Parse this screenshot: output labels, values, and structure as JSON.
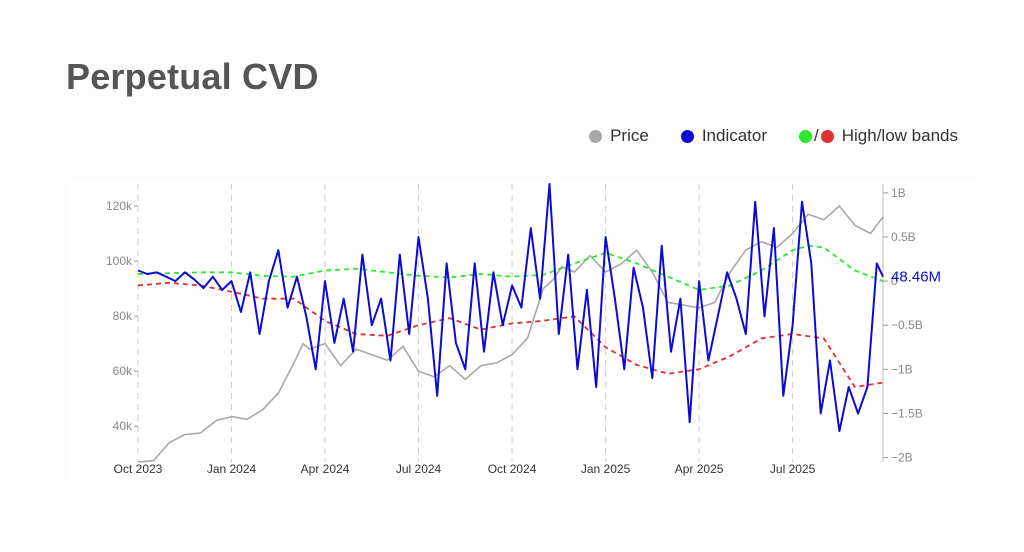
{
  "title": "Perpetual CVD",
  "legend": {
    "price": "Price",
    "indicator": "Indicator",
    "slash": "/",
    "bands": "High/low bands"
  },
  "colors": {
    "price": "#a8a8a8",
    "indicator": "#0b0bd6",
    "high": "#2ee82e",
    "low": "#e03030",
    "grid": "#cccccc"
  },
  "chart_data": {
    "type": "line",
    "last_value_label": "48.46M",
    "left_axis": {
      "ticks": [
        "40k",
        "60k",
        "80k",
        "100k",
        "120k"
      ],
      "values": [
        40000,
        60000,
        80000,
        100000,
        120000
      ],
      "range": [
        27000,
        128000
      ]
    },
    "right_axis": {
      "ticks": [
        "1B",
        "0.5B",
        "0",
        "−0.5B",
        "−1B",
        "−1.5B",
        "−2B"
      ],
      "values": [
        1,
        0.5,
        0,
        -0.5,
        -1,
        -1.5,
        -2
      ],
      "range": [
        -2.05,
        1.1
      ],
      "unit": "billions"
    },
    "x_axis": {
      "ticks": [
        "Oct 2023",
        "Jan 2024",
        "Apr 2024",
        "Jul 2024",
        "Oct 2024",
        "Jan 2025",
        "Apr 2025",
        "Jul 2025"
      ],
      "tick_months": [
        0,
        3,
        6,
        9,
        12,
        15,
        18,
        21
      ],
      "range_months": [
        0,
        23.9
      ]
    },
    "series": [
      {
        "name": "Price",
        "axis": "left",
        "x": [
          0,
          0.5,
          1,
          1.5,
          2,
          2.5,
          3,
          3.5,
          4,
          4.5,
          5,
          5.3,
          5.5,
          6,
          6.5,
          7,
          7.5,
          8,
          8.5,
          9,
          9.5,
          10,
          10.5,
          11,
          11.5,
          12,
          12.5,
          13,
          13.3,
          13.6,
          14,
          14.5,
          15,
          15.5,
          16,
          16.5,
          17,
          17.5,
          18,
          18.5,
          19,
          19.5,
          20,
          20.5,
          21,
          21.5,
          22,
          22.5,
          23,
          23.5,
          23.9
        ],
        "y": [
          27000,
          27500,
          34000,
          37000,
          37500,
          42000,
          43500,
          42500,
          46000,
          52000,
          63000,
          70000,
          68000,
          70000,
          62000,
          68000,
          66000,
          64000,
          69000,
          60000,
          58000,
          62000,
          57000,
          62000,
          63000,
          66000,
          72000,
          90000,
          93000,
          98000,
          96000,
          102000,
          96000,
          99000,
          104000,
          96000,
          85000,
          84000,
          83000,
          85000,
          96000,
          104000,
          107000,
          105000,
          110000,
          117000,
          115000,
          120000,
          113000,
          110000,
          116000
        ]
      },
      {
        "name": "Indicator",
        "axis": "right",
        "x": [
          0,
          0.3,
          0.6,
          0.9,
          1.2,
          1.5,
          1.8,
          2.1,
          2.4,
          2.7,
          3.0,
          3.3,
          3.6,
          3.9,
          4.2,
          4.5,
          4.8,
          5.1,
          5.4,
          5.7,
          6.0,
          6.3,
          6.6,
          6.9,
          7.2,
          7.5,
          7.8,
          8.1,
          8.4,
          8.7,
          9.0,
          9.3,
          9.6,
          9.9,
          10.2,
          10.5,
          10.8,
          11.1,
          11.4,
          11.7,
          12.0,
          12.3,
          12.6,
          12.9,
          13.2,
          13.5,
          13.8,
          14.1,
          14.4,
          14.7,
          15.0,
          15.3,
          15.6,
          15.9,
          16.2,
          16.5,
          16.8,
          17.1,
          17.4,
          17.7,
          18.0,
          18.3,
          18.6,
          18.9,
          19.2,
          19.5,
          19.8,
          20.1,
          20.4,
          20.7,
          21.0,
          21.3,
          21.6,
          21.9,
          22.2,
          22.5,
          22.8,
          23.1,
          23.4,
          23.7,
          23.9
        ],
        "y": [
          0.12,
          0.08,
          0.1,
          0.05,
          0.0,
          0.1,
          0.02,
          -0.08,
          0.05,
          -0.1,
          0.0,
          -0.35,
          0.1,
          -0.6,
          0.0,
          0.35,
          -0.3,
          0.05,
          -0.4,
          -1.0,
          0.0,
          -0.7,
          -0.2,
          -0.8,
          0.3,
          -0.5,
          -0.2,
          -0.9,
          0.3,
          -0.6,
          0.5,
          -0.2,
          -1.3,
          0.2,
          -0.7,
          -1.0,
          0.2,
          -0.8,
          0.1,
          -0.5,
          -0.05,
          -0.3,
          0.6,
          -0.2,
          1.1,
          -0.6,
          0.3,
          -1.0,
          -0.1,
          -1.2,
          0.5,
          -0.2,
          -1.0,
          0.15,
          -0.3,
          -1.1,
          0.4,
          -0.8,
          -0.2,
          -1.6,
          0.0,
          -0.9,
          -0.4,
          0.1,
          -0.2,
          -0.6,
          0.9,
          -0.4,
          0.6,
          -1.3,
          -0.5,
          0.9,
          0.2,
          -1.5,
          -0.9,
          -1.7,
          -1.2,
          -1.5,
          -1.2,
          0.2,
          0.05
        ]
      },
      {
        "name": "High band",
        "axis": "right",
        "x": [
          0,
          1,
          2,
          3,
          4,
          5,
          6,
          7,
          8,
          9,
          10,
          11,
          12,
          13,
          14,
          15,
          16,
          17,
          18,
          19,
          20,
          21,
          21.5,
          22,
          23,
          23.9
        ],
        "y": [
          0.08,
          0.09,
          0.1,
          0.1,
          0.06,
          0.05,
          0.12,
          0.14,
          0.1,
          0.06,
          0.04,
          0.08,
          0.05,
          0.07,
          0.2,
          0.32,
          0.2,
          0.05,
          -0.1,
          -0.05,
          0.12,
          0.35,
          0.4,
          0.38,
          0.12,
          0.0
        ]
      },
      {
        "name": "Low band",
        "axis": "right",
        "x": [
          0,
          1,
          2,
          3,
          4,
          5,
          6,
          7,
          8,
          9,
          10,
          11,
          12,
          13,
          14,
          15,
          16,
          17,
          18,
          19,
          20,
          21,
          22,
          23,
          23.9
        ],
        "y": [
          -0.05,
          -0.02,
          -0.05,
          -0.12,
          -0.2,
          -0.2,
          -0.45,
          -0.6,
          -0.62,
          -0.5,
          -0.42,
          -0.55,
          -0.48,
          -0.45,
          -0.4,
          -0.75,
          -0.95,
          -1.05,
          -1.0,
          -0.85,
          -0.65,
          -0.6,
          -0.65,
          -1.2,
          -1.15
        ]
      }
    ]
  }
}
